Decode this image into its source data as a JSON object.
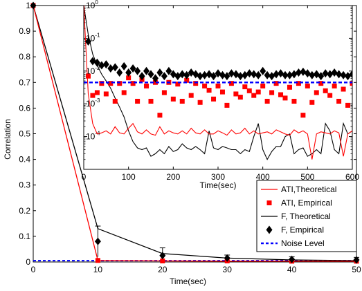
{
  "chart_data": [
    {
      "type": "line",
      "panel": "main",
      "xlabel": "Time(sec)",
      "ylabel": "Correlation",
      "xlim": [
        0,
        50
      ],
      "ylim": [
        0,
        1
      ],
      "xticks": [
        "0",
        "10",
        "20",
        "30",
        "40",
        "50"
      ],
      "yticks": [
        "0",
        "0.1",
        "0.2",
        "0.3",
        "0.4",
        "0.5",
        "0.6",
        "0.7",
        "0.8",
        "0.9",
        "1"
      ],
      "series": [
        {
          "name": "ATI,Theoretical",
          "style": "line",
          "color": "#ff0000",
          "x": [
            0,
            10,
            20,
            30,
            40,
            50
          ],
          "y": [
            1.0,
            0.006,
            0.004,
            0.003,
            0.003,
            0.003
          ]
        },
        {
          "name": "ATI, Empirical",
          "style": "square",
          "color": "#ff0000",
          "x": [
            0,
            10,
            20,
            30,
            40,
            50
          ],
          "y": [
            1.0,
            0.006,
            0.004,
            0.004,
            0.003,
            0.003
          ]
        },
        {
          "name": "F, Theoretical",
          "style": "line",
          "color": "#000000",
          "x": [
            0,
            10,
            20,
            30,
            40,
            50
          ],
          "y": [
            1.0,
            0.13,
            0.033,
            0.015,
            0.008,
            0.005
          ]
        },
        {
          "name": "F, Empirical",
          "style": "diamond",
          "color": "#000000",
          "x": [
            0,
            10,
            20,
            30,
            40,
            50
          ],
          "y": [
            1.0,
            0.08,
            0.025,
            0.015,
            0.01,
            0.008
          ],
          "err": [
            0,
            0.06,
            0.03,
            0.012,
            0.01,
            0.01
          ]
        },
        {
          "name": "Noise Level",
          "style": "dashed",
          "color": "#0000ff",
          "x": [
            0,
            50
          ],
          "y": [
            0.005,
            0.005
          ]
        }
      ],
      "legend": "lower-right"
    },
    {
      "type": "line",
      "panel": "inset",
      "xlabel": "Time(sec)",
      "ylabel": "",
      "yscale": "log",
      "xlim": [
        0,
        600
      ],
      "ylim": [
        1e-05,
        1
      ],
      "xticks": [
        "0",
        "100",
        "200",
        "300",
        "400",
        "500",
        "600"
      ],
      "ytick_values": [
        1,
        0.1,
        0.01,
        0.001,
        0.0001
      ],
      "ytick_exponents": [
        "0",
        "-1",
        "-2",
        "-3",
        "-4"
      ],
      "ytick_base": "10",
      "noise_level": 0.0045,
      "ati_theoretical": {
        "x": [
          0,
          10,
          20,
          30,
          40,
          50,
          60,
          70,
          80,
          90,
          100,
          110,
          120,
          130,
          140,
          150,
          160,
          170,
          180,
          190,
          200,
          210,
          220,
          230,
          240,
          250,
          260,
          270,
          280,
          290,
          300,
          310,
          320,
          330,
          340,
          350,
          360,
          370,
          380,
          390,
          400,
          410,
          420,
          430,
          440,
          450,
          460,
          470,
          480,
          490,
          500,
          510,
          520,
          530,
          540,
          550,
          560,
          570,
          580,
          590,
          600
        ],
        "y": [
          1.0,
          0.002,
          0.00025,
          0.00012,
          0.00013,
          0.00015,
          0.00012,
          0.0002,
          0.00013,
          0.00012,
          0.00018,
          0.00025,
          0.00014,
          0.00012,
          0.00016,
          0.00012,
          0.00011,
          0.0002,
          0.00012,
          0.00015,
          0.00013,
          0.00012,
          0.00015,
          0.00012,
          0.00018,
          0.00013,
          0.00012,
          0.00016,
          0.00012,
          0.00012,
          0.00015,
          0.00013,
          0.00011,
          0.00016,
          0.00012,
          0.00013,
          0.00018,
          0.00012,
          0.00015,
          0.00012,
          0.00013,
          0.00014,
          0.00012,
          0.00016,
          0.00014,
          0.00012,
          0.00011,
          0.00016,
          0.00013,
          0.00015,
          0.00012,
          2e-05,
          0.00012,
          0.00014,
          0.00013,
          0.00012,
          0.00015,
          0.00013,
          2.5e-05,
          0.00012,
          0.00015
        ]
      },
      "f_theoretical": {
        "x": [
          0,
          10,
          20,
          30,
          40,
          50,
          60,
          70,
          80,
          90,
          100,
          110,
          120,
          130,
          140,
          150,
          160,
          170,
          180,
          190,
          200,
          210,
          220,
          230,
          240,
          250,
          260,
          270,
          280,
          290,
          300,
          310,
          320,
          330,
          340,
          350,
          360,
          370,
          380,
          390,
          400,
          410,
          420,
          430,
          440,
          450,
          460,
          470,
          480,
          490,
          500,
          510,
          520,
          530,
          540,
          550,
          560,
          570,
          580,
          590,
          600
        ],
        "y": [
          1.0,
          0.13,
          0.033,
          0.015,
          0.008,
          0.005,
          0.003,
          0.0015,
          0.0008,
          0.0004,
          0.00015,
          7e-05,
          4.5e-05,
          4e-05,
          4.5e-05,
          2.5e-05,
          3e-05,
          4e-05,
          3e-05,
          5e-05,
          3.5e-05,
          4e-05,
          6e-05,
          4.5e-05,
          4e-05,
          5e-05,
          4e-05,
          3e-05,
          0.00015,
          4.5e-05,
          4e-05,
          5e-05,
          4.5e-05,
          4e-05,
          4e-05,
          3e-05,
          4e-05,
          3.5e-05,
          0.0001,
          0.00025,
          4e-05,
          2e-05,
          3.5e-05,
          5e-05,
          5e-05,
          0.0001,
          0.00012,
          3e-05,
          4e-05,
          4.5e-05,
          2.5e-05,
          3e-05,
          4e-05,
          3e-05,
          0.00025,
          0.00015,
          4e-05,
          3e-05,
          0.00025,
          0.00012,
          0.00015
        ]
      },
      "ati_empirical": {
        "x": [
          10,
          20,
          30,
          40,
          50,
          60,
          70,
          80,
          90,
          100,
          110,
          120,
          130,
          140,
          150,
          160,
          170,
          180,
          190,
          200,
          210,
          220,
          230,
          240,
          250,
          260,
          270,
          280,
          290,
          300,
          310,
          320,
          330,
          340,
          350,
          360,
          370,
          380,
          390,
          400,
          410,
          420,
          430,
          440,
          450,
          460,
          470,
          480,
          490,
          500,
          510,
          520,
          530,
          540,
          550,
          560,
          570,
          580,
          590,
          600
        ],
        "y": [
          0.007,
          0.0018,
          0.0022,
          0.0042,
          0.002,
          0.0042,
          0.0012,
          0.0042,
          0.0022,
          0.0062,
          0.0042,
          0.0012,
          0.0055,
          0.0035,
          0.0012,
          0.0045,
          0.00045,
          0.0022,
          0.0045,
          0.0014,
          0.004,
          0.0012,
          0.0052,
          0.0018,
          0.0042,
          0.0011,
          0.0035,
          0.0026,
          0.0014,
          0.0035,
          0.0023,
          0.0009,
          0.0042,
          0.002,
          0.0016,
          0.0033,
          0.0025,
          0.0018,
          0.0023,
          0.0035,
          0.0012,
          0.0022,
          0.0042,
          0.0019,
          0.0015,
          0.0032,
          0.0012,
          0.0042,
          0.00045,
          0.0035,
          0.0011,
          0.0022,
          0.0042,
          0.0025,
          0.0018,
          0.0035,
          0.0012,
          0.0028,
          0.0009,
          0.0042
        ]
      },
      "f_empirical": {
        "x": [
          10,
          20,
          30,
          40,
          50,
          60,
          70,
          80,
          90,
          100,
          110,
          120,
          130,
          140,
          150,
          160,
          170,
          180,
          190,
          200,
          210,
          220,
          230,
          240,
          250,
          260,
          270,
          280,
          290,
          300,
          310,
          320,
          330,
          340,
          350,
          360,
          370,
          380,
          390,
          400,
          410,
          420,
          430,
          440,
          450,
          460,
          470,
          480,
          490,
          500,
          510,
          520,
          530,
          540,
          550,
          560,
          570,
          580,
          590,
          600
        ],
        "y": [
          0.08,
          0.02,
          0.018,
          0.015,
          0.016,
          0.012,
          0.013,
          0.009,
          0.014,
          0.009,
          0.012,
          0.01,
          0.007,
          0.01,
          0.008,
          0.006,
          0.009,
          0.007,
          0.01,
          0.008,
          0.007,
          0.008,
          0.0075,
          0.009,
          0.008,
          0.007,
          0.0075,
          0.008,
          0.007,
          0.0085,
          0.0075,
          0.007,
          0.0085,
          0.008,
          0.007,
          0.0075,
          0.0085,
          0.008,
          0.0075,
          0.01,
          0.0075,
          0.007,
          0.008,
          0.0085,
          0.0075,
          0.0075,
          0.008,
          0.009,
          0.0095,
          0.0085,
          0.0075,
          0.008,
          0.007,
          0.0085,
          0.008,
          0.009,
          0.008,
          0.0075,
          0.007,
          0.008
        ]
      }
    }
  ],
  "legend": {
    "entries": [
      {
        "label": "ATI,Theoretical",
        "style": "line",
        "color": "#ff0000"
      },
      {
        "label": "ATI, Empirical",
        "style": "square",
        "color": "#ff0000"
      },
      {
        "label": "F, Theoretical",
        "style": "line",
        "color": "#000000"
      },
      {
        "label": "F, Empirical",
        "style": "diamond",
        "color": "#000000"
      },
      {
        "label": "Noise Level",
        "style": "dashed",
        "color": "#0000ff"
      }
    ]
  }
}
